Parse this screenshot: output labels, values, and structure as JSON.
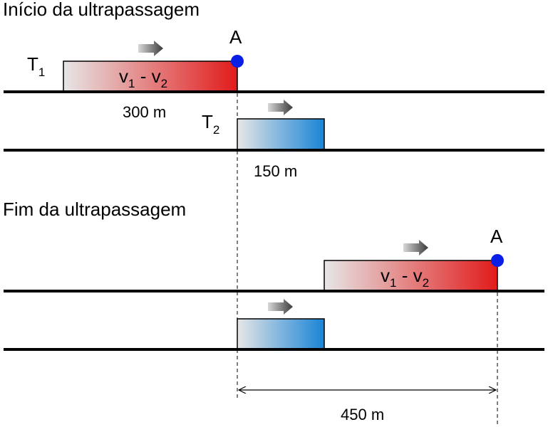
{
  "top": {
    "heading": "Início da ultrapassagem",
    "train1": {
      "letter": "T",
      "index": "1",
      "length": "300 m"
    },
    "train2": {
      "letter": "T",
      "index": "2",
      "length": "150 m"
    },
    "point": "A",
    "rel_v_letter": "v",
    "rel_v_sub1": "1",
    "rel_v_minus": " - ",
    "rel_v_sub2": "2"
  },
  "bottom": {
    "heading": "Fim da ultrapassagem",
    "point": "A",
    "rel_v_letter": "v",
    "rel_v_sub1": "1",
    "rel_v_minus": " - ",
    "rel_v_sub2": "2",
    "distance": "450 m"
  },
  "colors": {
    "train1_fill": "#e21b1b",
    "train2_fill": "#1a84d6",
    "point_fill": "#0a1fe6",
    "track": "#000000"
  }
}
